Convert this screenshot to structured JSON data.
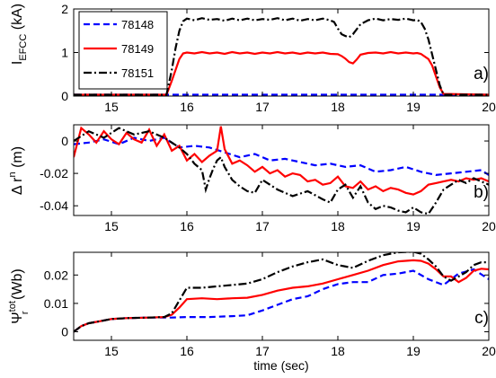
{
  "chart_data": [
    {
      "type": "line",
      "panel_label": "a)",
      "ylabel_parts": {
        "main": "I",
        "sub": "EFCC",
        "unit": " (kA)"
      },
      "xlim": [
        14.5,
        20
      ],
      "ylim": [
        0,
        2
      ],
      "xticks": [
        15,
        16,
        17,
        18,
        19,
        20
      ],
      "yticks": [
        0,
        1,
        2
      ],
      "ytick_labels": [
        "0",
        "1",
        "2"
      ],
      "legend": {
        "position": "top-left",
        "entries": [
          "78148",
          "78149",
          "78151"
        ]
      },
      "series": [
        {
          "name": "78148",
          "color": "#0000ff",
          "style": "dashed",
          "x": [
            14.5,
            20.0
          ],
          "y": [
            0.03,
            0.03
          ]
        },
        {
          "name": "78149",
          "color": "#ff0000",
          "style": "solid",
          "x": [
            14.5,
            15.73,
            15.8,
            15.85,
            15.9,
            15.95,
            16.0,
            16.1,
            16.2,
            16.3,
            16.4,
            16.5,
            16.6,
            16.7,
            16.8,
            16.9,
            17.0,
            17.1,
            17.2,
            17.3,
            17.4,
            17.5,
            17.6,
            17.7,
            17.8,
            17.9,
            18.0,
            18.05,
            18.1,
            18.15,
            18.2,
            18.25,
            18.3,
            18.4,
            18.5,
            18.6,
            18.7,
            18.8,
            18.9,
            19.0,
            19.05,
            19.1,
            19.2,
            19.25,
            19.3,
            19.35,
            19.4,
            20.0
          ],
          "y": [
            0.03,
            0.03,
            0.35,
            0.6,
            0.85,
            0.98,
            1.0,
            0.98,
            1.01,
            0.98,
            1.0,
            0.97,
            1.01,
            0.98,
            1.0,
            0.97,
            1.0,
            0.98,
            1.01,
            0.98,
            1.0,
            0.97,
            1.0,
            0.98,
            1.0,
            0.97,
            0.96,
            0.92,
            0.86,
            0.78,
            0.75,
            0.84,
            0.95,
            0.99,
            1.0,
            0.98,
            1.01,
            0.98,
            1.0,
            0.98,
            0.99,
            0.97,
            0.85,
            0.7,
            0.45,
            0.2,
            0.05,
            0.03
          ]
        },
        {
          "name": "78151",
          "color": "#000000",
          "style": "dashdot",
          "x": [
            14.5,
            15.73,
            15.8,
            15.85,
            15.9,
            15.95,
            16.0,
            16.1,
            16.2,
            16.3,
            16.4,
            16.5,
            16.6,
            16.7,
            16.8,
            16.9,
            17.0,
            17.1,
            17.2,
            17.3,
            17.4,
            17.5,
            17.6,
            17.7,
            17.8,
            17.9,
            17.95,
            18.0,
            18.05,
            18.1,
            18.15,
            18.2,
            18.3,
            18.4,
            18.5,
            18.6,
            18.7,
            18.8,
            18.9,
            19.0,
            19.05,
            19.1,
            19.15,
            19.2,
            19.25,
            19.3,
            19.35,
            19.4,
            20.0
          ],
          "y": [
            0.03,
            0.03,
            0.6,
            1.1,
            1.5,
            1.72,
            1.78,
            1.74,
            1.79,
            1.75,
            1.77,
            1.73,
            1.78,
            1.74,
            1.78,
            1.74,
            1.77,
            1.75,
            1.79,
            1.74,
            1.78,
            1.73,
            1.77,
            1.74,
            1.78,
            1.74,
            1.7,
            1.55,
            1.42,
            1.38,
            1.35,
            1.42,
            1.65,
            1.74,
            1.78,
            1.74,
            1.77,
            1.75,
            1.78,
            1.74,
            1.75,
            1.7,
            1.55,
            1.3,
            0.95,
            0.6,
            0.25,
            0.03,
            0.03
          ]
        }
      ]
    },
    {
      "type": "line",
      "panel_label": "b)",
      "ylabel_parts": {
        "main": "Δ r",
        "sup": "n",
        "unit": " (m)"
      },
      "xlim": [
        14.5,
        20
      ],
      "ylim": [
        -0.046,
        0.01
      ],
      "xticks": [
        15,
        16,
        17,
        18,
        19,
        20
      ],
      "yticks": [
        0,
        -0.02,
        -0.04
      ],
      "ytick_labels": [
        "0",
        "-0.02",
        "-0.04"
      ],
      "series": [
        {
          "name": "78148",
          "color": "#0000ff",
          "style": "dashed",
          "x": [
            14.5,
            14.7,
            14.9,
            15.1,
            15.3,
            15.5,
            15.7,
            15.9,
            16.1,
            16.3,
            16.5,
            16.7,
            16.9,
            17.1,
            17.3,
            17.5,
            17.7,
            17.9,
            18.1,
            18.3,
            18.5,
            18.7,
            18.9,
            19.1,
            19.3,
            19.5,
            19.7,
            19.9,
            20.0
          ],
          "y": [
            -0.002,
            -0.001,
            0.001,
            -0.002,
            0.002,
            0.0,
            0.002,
            -0.004,
            -0.003,
            -0.004,
            -0.007,
            -0.01,
            -0.008,
            -0.012,
            -0.011,
            -0.013,
            -0.015,
            -0.014,
            -0.016,
            -0.015,
            -0.019,
            -0.018,
            -0.016,
            -0.019,
            -0.021,
            -0.02,
            -0.019,
            -0.018,
            -0.021
          ]
        },
        {
          "name": "78149",
          "color": "#ff0000",
          "style": "solid",
          "x": [
            14.5,
            14.6,
            14.7,
            14.8,
            14.9,
            15.0,
            15.1,
            15.2,
            15.3,
            15.4,
            15.5,
            15.6,
            15.7,
            15.8,
            15.9,
            16.0,
            16.1,
            16.2,
            16.3,
            16.4,
            16.45,
            16.5,
            16.6,
            16.7,
            16.8,
            16.9,
            17.0,
            17.1,
            17.2,
            17.3,
            17.4,
            17.5,
            17.6,
            17.7,
            17.8,
            17.9,
            18.0,
            18.1,
            18.2,
            18.3,
            18.4,
            18.5,
            18.6,
            18.7,
            18.8,
            18.9,
            19.0,
            19.1,
            19.2,
            19.3,
            19.4,
            19.5,
            19.6,
            19.7,
            19.8,
            19.9,
            20.0
          ],
          "y": [
            -0.01,
            0.008,
            0.004,
            -0.001,
            0.006,
            0.001,
            -0.002,
            0.005,
            0.001,
            -0.001,
            0.007,
            -0.003,
            0.004,
            -0.006,
            -0.003,
            -0.012,
            -0.008,
            -0.013,
            -0.009,
            -0.006,
            0.009,
            -0.005,
            -0.014,
            -0.012,
            -0.015,
            -0.019,
            -0.016,
            -0.02,
            -0.018,
            -0.022,
            -0.02,
            -0.021,
            -0.025,
            -0.024,
            -0.027,
            -0.026,
            -0.022,
            -0.028,
            -0.029,
            -0.025,
            -0.03,
            -0.028,
            -0.031,
            -0.029,
            -0.03,
            -0.032,
            -0.033,
            -0.031,
            -0.027,
            -0.026,
            -0.025,
            -0.024,
            -0.025,
            -0.023,
            -0.024,
            -0.023,
            -0.025
          ]
        },
        {
          "name": "78151",
          "color": "#000000",
          "style": "dashdot",
          "x": [
            14.5,
            14.7,
            14.9,
            15.1,
            15.3,
            15.5,
            15.7,
            15.9,
            16.0,
            16.1,
            16.2,
            16.25,
            16.3,
            16.35,
            16.4,
            16.45,
            16.5,
            16.6,
            16.7,
            16.8,
            16.9,
            17.0,
            17.2,
            17.4,
            17.6,
            17.8,
            17.9,
            18.0,
            18.1,
            18.2,
            18.3,
            18.4,
            18.5,
            18.6,
            18.7,
            18.8,
            18.9,
            19.0,
            19.1,
            19.2,
            19.3,
            19.4,
            19.5,
            19.6,
            19.7,
            19.8,
            19.9,
            20.0
          ],
          "y": [
            0.0,
            0.006,
            0.002,
            0.008,
            0.004,
            0.006,
            0.002,
            -0.004,
            -0.008,
            -0.014,
            -0.018,
            -0.03,
            -0.023,
            -0.017,
            -0.012,
            -0.01,
            -0.016,
            -0.024,
            -0.028,
            -0.031,
            -0.032,
            -0.024,
            -0.03,
            -0.034,
            -0.031,
            -0.036,
            -0.038,
            -0.03,
            -0.027,
            -0.035,
            -0.028,
            -0.038,
            -0.042,
            -0.04,
            -0.041,
            -0.043,
            -0.044,
            -0.041,
            -0.044,
            -0.045,
            -0.038,
            -0.03,
            -0.027,
            -0.024,
            -0.026,
            -0.023,
            -0.025,
            -0.027
          ]
        }
      ]
    },
    {
      "type": "line",
      "panel_label": "c)",
      "ylabel_parts": {
        "main": "Ψ",
        "sup": "tot",
        "sub": "r",
        "unit": " (Wb)"
      },
      "xlim": [
        14.5,
        20
      ],
      "ylim": [
        -0.003,
        0.028
      ],
      "xticks": [
        15,
        16,
        17,
        18,
        19,
        20
      ],
      "yticks": [
        0,
        0.01,
        0.02
      ],
      "ytick_labels": [
        "0",
        "0.01",
        "0.02"
      ],
      "xlabel": "time (sec)",
      "series": [
        {
          "name": "78148",
          "color": "#0000ff",
          "style": "dashed",
          "x": [
            14.5,
            14.55,
            14.6,
            14.7,
            14.8,
            14.9,
            15.0,
            15.2,
            15.5,
            15.8,
            16.0,
            16.3,
            16.6,
            16.8,
            17.0,
            17.2,
            17.4,
            17.6,
            17.8,
            18.0,
            18.2,
            18.4,
            18.6,
            18.8,
            19.0,
            19.2,
            19.4,
            19.6,
            19.8,
            20.0
          ],
          "y": [
            0.0,
            0.001,
            0.002,
            0.003,
            0.0035,
            0.004,
            0.0045,
            0.0048,
            0.005,
            0.005,
            0.0052,
            0.0052,
            0.0055,
            0.0058,
            0.0075,
            0.0095,
            0.0115,
            0.0125,
            0.015,
            0.0168,
            0.0175,
            0.0175,
            0.02,
            0.0205,
            0.0215,
            0.0185,
            0.0165,
            0.0205,
            0.022,
            0.0185
          ]
        },
        {
          "name": "78149",
          "color": "#ff0000",
          "style": "solid",
          "x": [
            14.5,
            14.55,
            14.6,
            14.7,
            14.8,
            14.9,
            15.0,
            15.2,
            15.5,
            15.7,
            15.8,
            15.9,
            16.0,
            16.2,
            16.4,
            16.6,
            16.8,
            17.0,
            17.2,
            17.4,
            17.6,
            17.8,
            18.0,
            18.2,
            18.4,
            18.6,
            18.8,
            19.0,
            19.1,
            19.2,
            19.3,
            19.4,
            19.5,
            19.6,
            19.7,
            19.8,
            19.9,
            20.0
          ],
          "y": [
            0.0,
            0.001,
            0.002,
            0.003,
            0.0035,
            0.004,
            0.0045,
            0.0048,
            0.005,
            0.0052,
            0.006,
            0.0085,
            0.0115,
            0.0118,
            0.0115,
            0.0118,
            0.012,
            0.013,
            0.0145,
            0.0155,
            0.016,
            0.017,
            0.0185,
            0.02,
            0.0215,
            0.0235,
            0.0248,
            0.0252,
            0.025,
            0.024,
            0.022,
            0.0195,
            0.0195,
            0.0175,
            0.019,
            0.0215,
            0.0222,
            0.022
          ]
        },
        {
          "name": "78151",
          "color": "#000000",
          "style": "dashdot",
          "x": [
            14.5,
            14.55,
            14.6,
            14.7,
            14.8,
            14.9,
            15.0,
            15.2,
            15.5,
            15.7,
            15.8,
            15.9,
            16.0,
            16.2,
            16.4,
            16.6,
            16.8,
            17.0,
            17.2,
            17.4,
            17.6,
            17.8,
            18.0,
            18.2,
            18.4,
            18.6,
            18.8,
            19.0,
            19.1,
            19.2,
            19.3,
            19.4,
            19.5,
            19.6,
            19.7,
            19.8,
            19.9,
            20.0
          ],
          "y": [
            0.0,
            0.001,
            0.002,
            0.003,
            0.0035,
            0.004,
            0.0045,
            0.0048,
            0.005,
            0.0052,
            0.0065,
            0.011,
            0.0155,
            0.0155,
            0.016,
            0.0165,
            0.017,
            0.0185,
            0.021,
            0.023,
            0.0245,
            0.0255,
            0.0235,
            0.0225,
            0.025,
            0.027,
            0.028,
            0.0282,
            0.0275,
            0.0255,
            0.023,
            0.0195,
            0.018,
            0.0195,
            0.021,
            0.0235,
            0.0245,
            0.0245
          ]
        }
      ]
    }
  ]
}
